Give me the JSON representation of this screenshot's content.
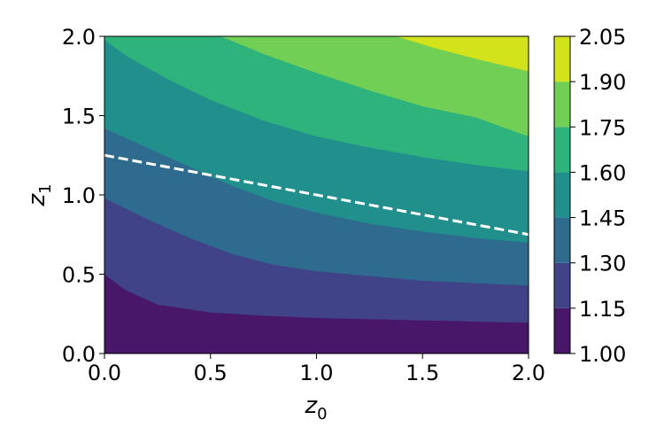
{
  "chart_data": {
    "type": "contourf",
    "xlabel_base": "z",
    "xlabel_sub": "0",
    "ylabel_base": "z",
    "ylabel_sub": "1",
    "xlim": [
      0.0,
      2.0
    ],
    "ylim": [
      0.0,
      2.0
    ],
    "xticks": [
      "0.0",
      "0.5",
      "1.0",
      "1.5",
      "2.0"
    ],
    "yticks": [
      "0.0",
      "0.5",
      "1.0",
      "1.5",
      "2.0"
    ],
    "colorbar": {
      "levels": [
        1.0,
        1.15,
        1.3,
        1.45,
        1.6,
        1.75,
        1.9,
        2.05
      ],
      "tick_labels": [
        "1.00",
        "1.15",
        "1.30",
        "1.45",
        "1.60",
        "1.75",
        "1.90",
        "2.05"
      ],
      "colors": [
        "#481769",
        "#404387",
        "#2f6b8e",
        "#21908d",
        "#2eb37c",
        "#72cf56",
        "#d2e21b"
      ]
    },
    "contour_boundaries": [
      {
        "level": 1.15,
        "points": [
          [
            0.0,
            0.5
          ],
          [
            0.1,
            0.4
          ],
          [
            0.25,
            0.31
          ],
          [
            0.5,
            0.26
          ],
          [
            0.75,
            0.24
          ],
          [
            1.0,
            0.225
          ],
          [
            1.5,
            0.21
          ],
          [
            2.0,
            0.195
          ]
        ]
      },
      {
        "level": 1.3,
        "points": [
          [
            0.0,
            0.98
          ],
          [
            0.2,
            0.85
          ],
          [
            0.4,
            0.73
          ],
          [
            0.6,
            0.63
          ],
          [
            0.8,
            0.56
          ],
          [
            1.0,
            0.52
          ],
          [
            1.5,
            0.46
          ],
          [
            2.0,
            0.43
          ]
        ]
      },
      {
        "level": 1.45,
        "points": [
          [
            0.0,
            1.42
          ],
          [
            0.2,
            1.3
          ],
          [
            0.4,
            1.18
          ],
          [
            0.6,
            1.06
          ],
          [
            0.8,
            0.96
          ],
          [
            1.0,
            0.89
          ],
          [
            1.25,
            0.82
          ],
          [
            1.5,
            0.77
          ],
          [
            1.75,
            0.73
          ],
          [
            2.0,
            0.7
          ]
        ]
      },
      {
        "level": 1.6,
        "points": [
          [
            0.0,
            1.98
          ],
          [
            0.1,
            1.88
          ],
          [
            0.3,
            1.73
          ],
          [
            0.5,
            1.6
          ],
          [
            0.75,
            1.47
          ],
          [
            1.0,
            1.37
          ],
          [
            1.25,
            1.3
          ],
          [
            1.5,
            1.24
          ],
          [
            1.75,
            1.19
          ],
          [
            2.0,
            1.15
          ]
        ]
      },
      {
        "level": 1.75,
        "points": [
          [
            0.55,
            2.0
          ],
          [
            0.75,
            1.89
          ],
          [
            1.0,
            1.77
          ],
          [
            1.25,
            1.66
          ],
          [
            1.5,
            1.56
          ],
          [
            1.75,
            1.49
          ],
          [
            2.0,
            1.37
          ]
        ]
      },
      {
        "level": 1.9,
        "points": [
          [
            1.38,
            2.0
          ],
          [
            1.55,
            1.93
          ],
          [
            1.75,
            1.86
          ],
          [
            2.0,
            1.78
          ]
        ]
      }
    ],
    "dashed_line": {
      "color": "#ffffff",
      "points": [
        [
          0.0,
          1.25
        ],
        [
          2.0,
          0.75
        ]
      ]
    }
  }
}
